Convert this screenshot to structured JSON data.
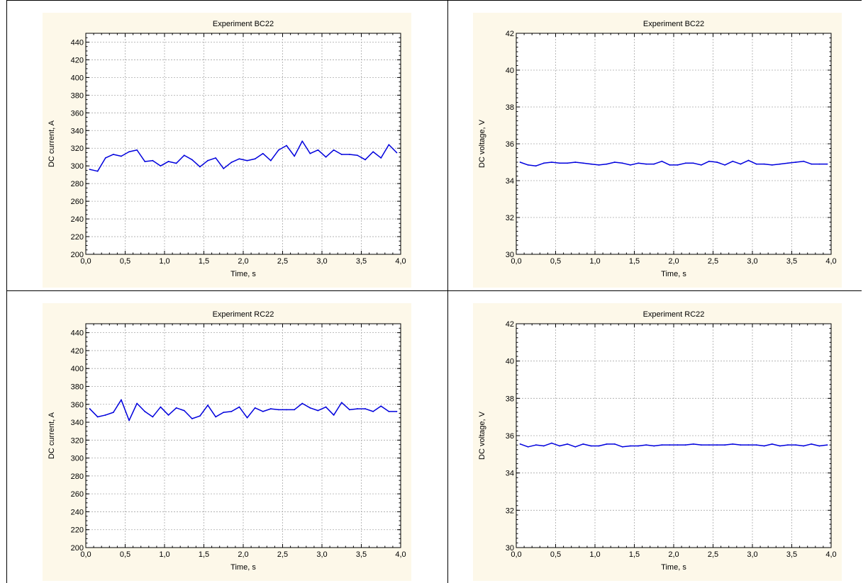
{
  "chart_data": [
    {
      "type": "line",
      "title": "Experiment BC22",
      "xlabel": "Time, s",
      "ylabel": "DC current, A",
      "xlim": [
        0.0,
        4.0
      ],
      "ylim": [
        200,
        450
      ],
      "xticks": [
        "0,0",
        "0,5",
        "1,0",
        "1,5",
        "2,0",
        "2,5",
        "3,0",
        "3,5",
        "4,0"
      ],
      "yticks": [
        "200",
        "220",
        "240",
        "260",
        "280",
        "300",
        "320",
        "340",
        "360",
        "380",
        "400",
        "420",
        "440"
      ],
      "grid": true,
      "line_color": "#0000dd",
      "series": [
        {
          "x": [
            0.05,
            0.15,
            0.25,
            0.35,
            0.45,
            0.55,
            0.65,
            0.75,
            0.85,
            0.95,
            1.05,
            1.15,
            1.25,
            1.35,
            1.45,
            1.55,
            1.65,
            1.75,
            1.85,
            1.95,
            2.05,
            2.15,
            2.25,
            2.35,
            2.45,
            2.55,
            2.65,
            2.75,
            2.85,
            2.95,
            3.05,
            3.15,
            3.25,
            3.35,
            3.45,
            3.55,
            3.65,
            3.75,
            3.85,
            3.95
          ],
          "values": [
            296,
            294,
            309,
            313,
            311,
            316,
            318,
            305,
            306,
            300,
            305,
            303,
            312,
            307,
            299,
            306,
            309,
            297,
            304,
            308,
            306,
            308,
            314,
            306,
            318,
            323,
            311,
            328,
            314,
            318,
            310,
            318,
            313,
            313,
            312,
            307,
            316,
            309,
            324,
            315
          ]
        }
      ]
    },
    {
      "type": "line",
      "title": "Experiment BC22",
      "xlabel": "Time, s",
      "ylabel": "DC voltage,  V",
      "xlim": [
        0.0,
        4.0
      ],
      "ylim": [
        30,
        42
      ],
      "xticks": [
        "0,0",
        "0,5",
        "1,0",
        "1,5",
        "2,0",
        "2,5",
        "3,0",
        "3,5",
        "4,0"
      ],
      "yticks": [
        "30",
        "32",
        "34",
        "36",
        "38",
        "40",
        "42"
      ],
      "grid": true,
      "line_color": "#0000dd",
      "series": [
        {
          "x": [
            0.05,
            0.15,
            0.25,
            0.35,
            0.45,
            0.55,
            0.65,
            0.75,
            0.85,
            0.95,
            1.05,
            1.15,
            1.25,
            1.35,
            1.45,
            1.55,
            1.65,
            1.75,
            1.85,
            1.95,
            2.05,
            2.15,
            2.25,
            2.35,
            2.45,
            2.55,
            2.65,
            2.75,
            2.85,
            2.95,
            3.05,
            3.15,
            3.25,
            3.35,
            3.45,
            3.55,
            3.65,
            3.75,
            3.85,
            3.95
          ],
          "values": [
            35.0,
            34.85,
            34.8,
            34.95,
            35.0,
            34.95,
            34.95,
            35.0,
            34.95,
            34.9,
            34.85,
            34.9,
            35.0,
            34.95,
            34.85,
            34.95,
            34.9,
            34.9,
            35.05,
            34.85,
            34.85,
            34.95,
            34.95,
            34.85,
            35.05,
            35.0,
            34.85,
            35.05,
            34.9,
            35.1,
            34.9,
            34.9,
            34.85,
            34.9,
            34.95,
            35.0,
            35.05,
            34.9,
            34.9,
            34.9
          ]
        }
      ]
    },
    {
      "type": "line",
      "title": "Experiment  RC22",
      "xlabel": "Time, s",
      "ylabel": "DC current, A",
      "xlim": [
        0.0,
        4.0
      ],
      "ylim": [
        200,
        450
      ],
      "xticks": [
        "0,0",
        "0,5",
        "1,0",
        "1,5",
        "2,0",
        "2,5",
        "3,0",
        "3,5",
        "4,0"
      ],
      "yticks": [
        "200",
        "220",
        "240",
        "260",
        "280",
        "300",
        "320",
        "340",
        "360",
        "380",
        "400",
        "420",
        "440"
      ],
      "grid": true,
      "line_color": "#0000dd",
      "series": [
        {
          "x": [
            0.05,
            0.15,
            0.25,
            0.35,
            0.45,
            0.55,
            0.65,
            0.75,
            0.85,
            0.95,
            1.05,
            1.15,
            1.25,
            1.35,
            1.45,
            1.55,
            1.65,
            1.75,
            1.85,
            1.95,
            2.05,
            2.15,
            2.25,
            2.35,
            2.45,
            2.55,
            2.65,
            2.75,
            2.85,
            2.95,
            3.05,
            3.15,
            3.25,
            3.35,
            3.45,
            3.55,
            3.65,
            3.75,
            3.85,
            3.95
          ],
          "values": [
            355,
            346,
            348,
            351,
            365,
            342,
            361,
            352,
            346,
            357,
            348,
            356,
            353,
            344,
            347,
            359,
            346,
            351,
            352,
            357,
            345,
            356,
            352,
            355,
            354,
            354,
            354,
            361,
            356,
            353,
            357,
            348,
            362,
            354,
            355,
            355,
            352,
            358,
            352,
            352
          ]
        }
      ]
    },
    {
      "type": "line",
      "title": "Experiment RC22",
      "xlabel": "Time, s",
      "ylabel": "DC voltage, V",
      "xlim": [
        0.0,
        4.0
      ],
      "ylim": [
        30,
        42
      ],
      "xticks": [
        "0,0",
        "0,5",
        "1,0",
        "1,5",
        "2,0",
        "2,5",
        "3,0",
        "3,5",
        "4,0"
      ],
      "yticks": [
        "30",
        "32",
        "34",
        "36",
        "38",
        "40",
        "42"
      ],
      "grid": true,
      "line_color": "#0000dd",
      "series": [
        {
          "x": [
            0.05,
            0.15,
            0.25,
            0.35,
            0.45,
            0.55,
            0.65,
            0.75,
            0.85,
            0.95,
            1.05,
            1.15,
            1.25,
            1.35,
            1.45,
            1.55,
            1.65,
            1.75,
            1.85,
            1.95,
            2.05,
            2.15,
            2.25,
            2.35,
            2.45,
            2.55,
            2.65,
            2.75,
            2.85,
            2.95,
            3.05,
            3.15,
            3.25,
            3.35,
            3.45,
            3.55,
            3.65,
            3.75,
            3.85,
            3.95
          ],
          "values": [
            35.55,
            35.4,
            35.5,
            35.45,
            35.6,
            35.45,
            35.55,
            35.4,
            35.55,
            35.45,
            35.45,
            35.55,
            35.55,
            35.4,
            35.45,
            35.45,
            35.5,
            35.45,
            35.5,
            35.5,
            35.5,
            35.5,
            35.55,
            35.5,
            35.5,
            35.5,
            35.5,
            35.55,
            35.5,
            35.5,
            35.5,
            35.45,
            35.55,
            35.45,
            35.5,
            35.5,
            35.45,
            35.55,
            35.45,
            35.5
          ]
        }
      ]
    }
  ]
}
